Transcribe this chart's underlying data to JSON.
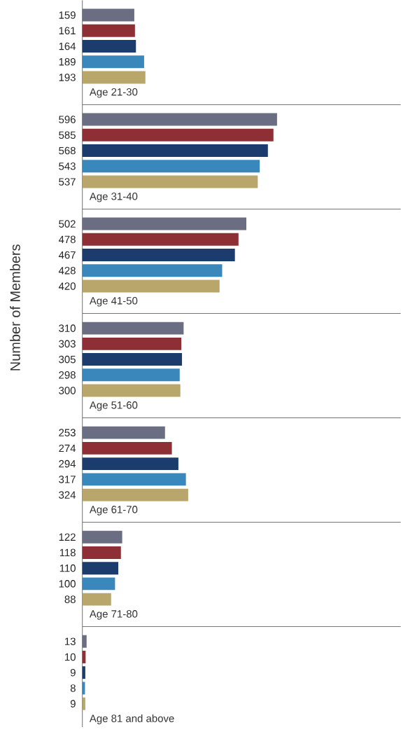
{
  "chart_data": [
    {
      "type": "bar",
      "orientation": "horizontal",
      "xlabel": "Age 21-30",
      "categories": [
        null,
        null,
        null,
        null,
        null
      ],
      "values": [
        159,
        161,
        164,
        189,
        193
      ],
      "colors": [
        "#6b6e82",
        "#8e2f35",
        "#1c3c6e",
        "#3a87bb",
        "#b9a66a"
      ],
      "data_labels": true
    },
    {
      "type": "bar",
      "orientation": "horizontal",
      "xlabel": "Age 31-40",
      "categories": [
        null,
        null,
        null,
        null,
        null
      ],
      "values": [
        596,
        585,
        568,
        543,
        537
      ],
      "colors": [
        "#6b6e82",
        "#8e2f35",
        "#1c3c6e",
        "#3a87bb",
        "#b9a66a"
      ],
      "data_labels": true
    },
    {
      "type": "bar",
      "orientation": "horizontal",
      "xlabel": "Age 41-50",
      "ylabel": "Number of Members",
      "categories": [
        null,
        null,
        null,
        null,
        null
      ],
      "values": [
        502,
        478,
        467,
        428,
        420
      ],
      "colors": [
        "#6b6e82",
        "#8e2f35",
        "#1c3c6e",
        "#3a87bb",
        "#b9a66a"
      ],
      "data_labels": true
    },
    {
      "type": "bar",
      "orientation": "horizontal",
      "xlabel": "Age 51-60",
      "categories": [
        null,
        null,
        null,
        null,
        null
      ],
      "values": [
        310,
        303,
        305,
        298,
        300
      ],
      "colors": [
        "#6b6e82",
        "#8e2f35",
        "#1c3c6e",
        "#3a87bb",
        "#b9a66a"
      ],
      "data_labels": true
    },
    {
      "type": "bar",
      "orientation": "horizontal",
      "xlabel": "Age 61-70",
      "categories": [
        null,
        null,
        null,
        null,
        null
      ],
      "values": [
        253,
        274,
        294,
        317,
        324
      ],
      "colors": [
        "#6b6e82",
        "#8e2f35",
        "#1c3c6e",
        "#3a87bb",
        "#b9a66a"
      ],
      "data_labels": true
    },
    {
      "type": "bar",
      "orientation": "horizontal",
      "xlabel": "Age 71-80",
      "categories": [
        null,
        null,
        null,
        null,
        null
      ],
      "values": [
        122,
        118,
        110,
        100,
        88
      ],
      "colors": [
        "#6b6e82",
        "#8e2f35",
        "#1c3c6e",
        "#3a87bb",
        "#b9a66a"
      ],
      "data_labels": true
    },
    {
      "type": "bar",
      "orientation": "horizontal",
      "xlabel": "Age 81 and above",
      "categories": [
        null,
        null,
        null,
        null,
        null
      ],
      "values": [
        13,
        10,
        9,
        8,
        9
      ],
      "colors": [
        "#6b6e82",
        "#8e2f35",
        "#1c3c6e",
        "#3a87bb",
        "#b9a66a"
      ],
      "data_labels": true
    }
  ]
}
